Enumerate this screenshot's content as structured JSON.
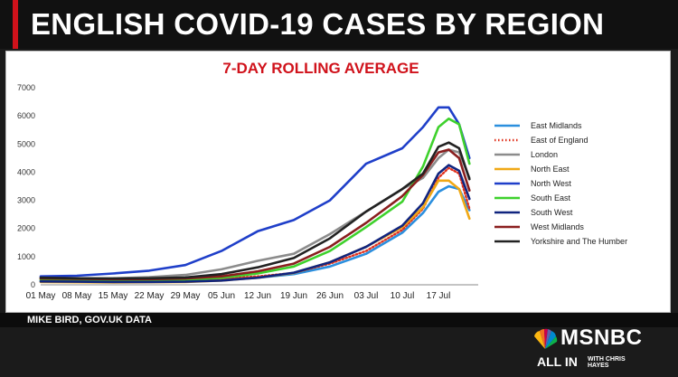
{
  "header": {
    "headline": "ENGLISH COVID-19 CASES BY REGION"
  },
  "footer": {
    "source": "MIKE BIRD, GOV.UK DATA"
  },
  "branding": {
    "network": "MSNBC",
    "show": "ALL IN",
    "show_host": "WITH CHRIS HAYES"
  },
  "colors": {
    "accent": "#d0121b",
    "title": "#d0121b"
  },
  "chart_data": {
    "type": "line",
    "title": "7-DAY ROLLING AVERAGE",
    "xlabel": "",
    "ylabel": "",
    "ylim": [
      0,
      7000
    ],
    "yticks": [
      0,
      1000,
      2000,
      3000,
      4000,
      5000,
      6000,
      7000
    ],
    "xticks": [
      "01 May",
      "08 May",
      "15 May",
      "22 May",
      "29 May",
      "05 Jun",
      "12 Jun",
      "19 Jun",
      "26 Jun",
      "03 Jul",
      "10 Jul",
      "17 Jul"
    ],
    "x": [
      "01 May",
      "08 May",
      "15 May",
      "22 May",
      "29 May",
      "05 Jun",
      "12 Jun",
      "19 Jun",
      "26 Jun",
      "03 Jul",
      "10 Jul",
      "14 Jul",
      "17 Jul",
      "19 Jul",
      "21 Jul",
      "23 Jul"
    ],
    "grid": false,
    "legend_position": "right",
    "series": [
      {
        "name": "East Midlands",
        "color": "#2b8fde",
        "dotted": false,
        "values": [
          150,
          140,
          130,
          140,
          150,
          200,
          250,
          380,
          650,
          1100,
          1850,
          2550,
          3300,
          3500,
          3400,
          2650
        ]
      },
      {
        "name": "East of England",
        "color": "#e0321e",
        "dotted": true,
        "values": [
          200,
          180,
          170,
          160,
          180,
          220,
          300,
          420,
          750,
          1200,
          1950,
          2700,
          3800,
          4150,
          3950,
          2700
        ]
      },
      {
        "name": "London",
        "color": "#8c8c8c",
        "dotted": false,
        "values": [
          250,
          220,
          230,
          270,
          350,
          550,
          850,
          1100,
          1800,
          2600,
          3400,
          3800,
          4500,
          4800,
          4700,
          3800
        ]
      },
      {
        "name": "North East",
        "color": "#f0a815",
        "dotted": false,
        "values": [
          100,
          90,
          80,
          90,
          100,
          150,
          250,
          420,
          800,
          1350,
          2050,
          2750,
          3700,
          3700,
          3400,
          2350
        ]
      },
      {
        "name": "North West",
        "color": "#1f3fc9",
        "dotted": false,
        "values": [
          300,
          320,
          400,
          500,
          700,
          1200,
          1900,
          2300,
          3000,
          4300,
          4850,
          5600,
          6300,
          6300,
          5700,
          4500
        ]
      },
      {
        "name": "South East",
        "color": "#3ed12c",
        "dotted": false,
        "values": [
          180,
          170,
          160,
          160,
          180,
          250,
          400,
          650,
          1200,
          2050,
          2950,
          4200,
          5600,
          5900,
          5700,
          4300
        ]
      },
      {
        "name": "South West",
        "color": "#10247f",
        "dotted": false,
        "values": [
          120,
          110,
          100,
          100,
          110,
          150,
          250,
          430,
          800,
          1350,
          2100,
          2900,
          3950,
          4250,
          4050,
          3050
        ]
      },
      {
        "name": "West Midlands",
        "color": "#8a1e1e",
        "dotted": false,
        "values": [
          220,
          210,
          200,
          200,
          220,
          300,
          480,
          750,
          1350,
          2200,
          3150,
          3900,
          4700,
          4800,
          4500,
          3350
        ]
      },
      {
        "name": "Yorkshire and The Humber",
        "color": "#222222",
        "dotted": false,
        "values": [
          250,
          230,
          220,
          230,
          260,
          380,
          620,
          950,
          1650,
          2600,
          3400,
          3950,
          4900,
          5050,
          4850,
          3750
        ]
      }
    ]
  }
}
